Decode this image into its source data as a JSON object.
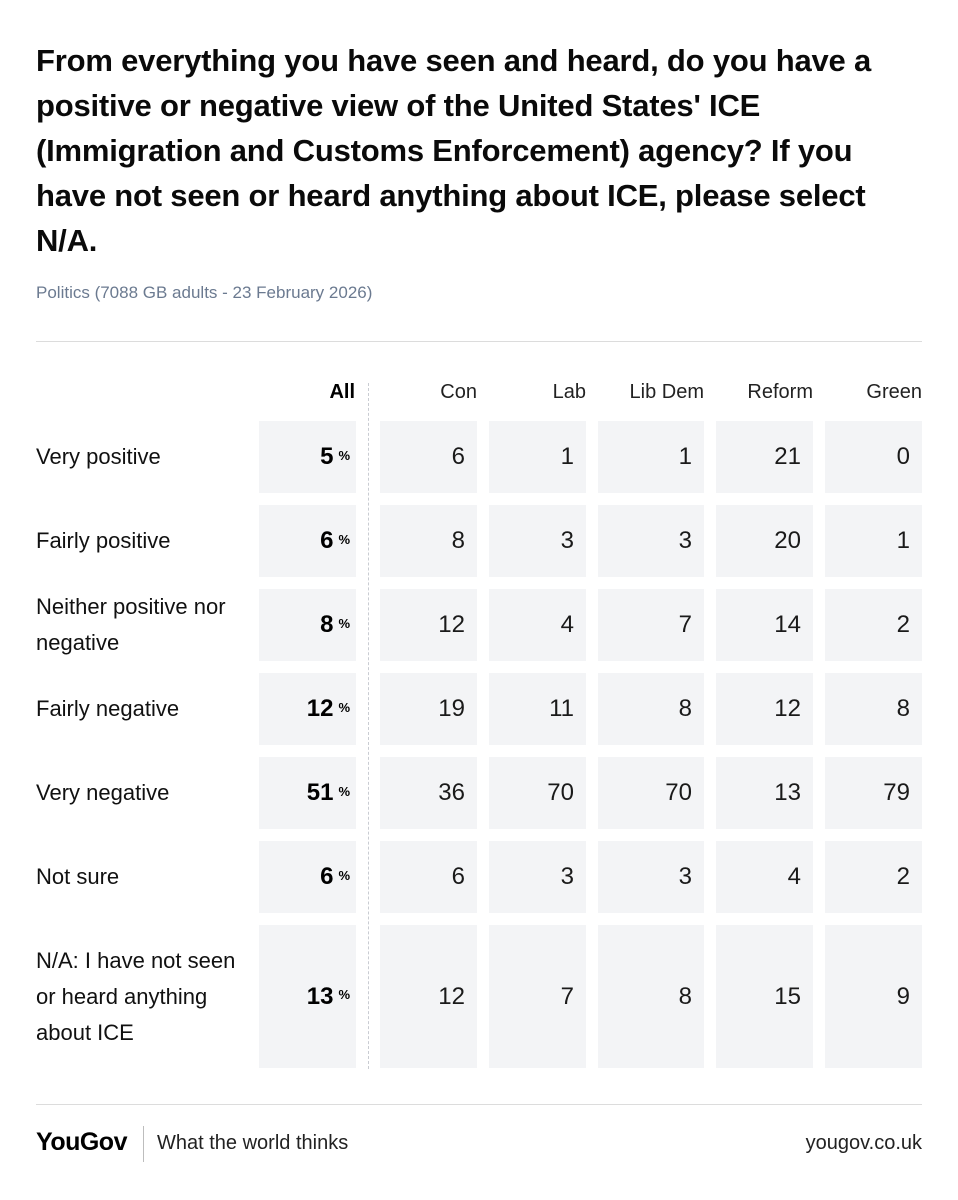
{
  "header": {
    "title": "From everything you have seen and heard, do you have a positive or negative view of the United States' ICE (Immigration and Customs Enforcement) agency? If you have not seen or heard anything about ICE, please select N/A.",
    "subtitle": "Politics (7088 GB adults - 23 February 2026)"
  },
  "chart_data": {
    "type": "table",
    "columns": [
      "All",
      "Con",
      "Lab",
      "Lib Dem",
      "Reform",
      "Green"
    ],
    "unit_symbol": "%",
    "rows": [
      {
        "label": "Very positive",
        "values": [
          5,
          6,
          1,
          1,
          21,
          0
        ]
      },
      {
        "label": "Fairly positive",
        "values": [
          6,
          8,
          3,
          3,
          20,
          1
        ]
      },
      {
        "label": "Neither positive nor negative",
        "values": [
          8,
          12,
          4,
          7,
          14,
          2
        ]
      },
      {
        "label": "Fairly negative",
        "values": [
          12,
          19,
          11,
          8,
          12,
          8
        ]
      },
      {
        "label": "Very negative",
        "values": [
          51,
          36,
          70,
          70,
          13,
          79
        ]
      },
      {
        "label": "Not sure",
        "values": [
          6,
          6,
          3,
          3,
          4,
          2
        ]
      },
      {
        "label": "N/A: I have not seen or heard anything about ICE",
        "values": [
          13,
          12,
          7,
          8,
          15,
          9
        ]
      }
    ]
  },
  "footer": {
    "logo": "YouGov",
    "tagline": "What the world thinks",
    "url": "yougov.co.uk"
  }
}
